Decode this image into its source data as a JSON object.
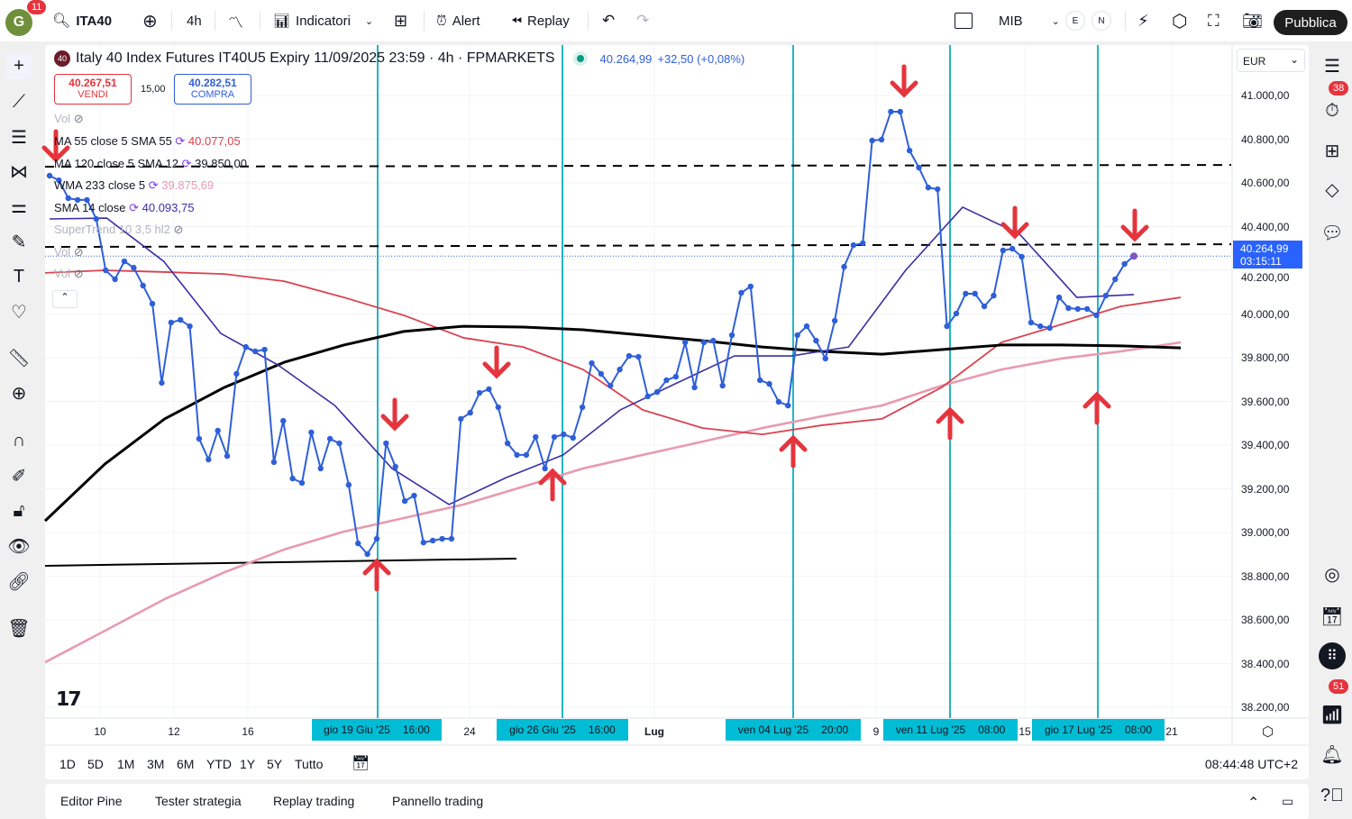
{
  "topbar": {
    "avatar_letter": "G",
    "notif_count": "11",
    "symbol": "ITA40",
    "interval": "4h",
    "indicators": "Indicatori",
    "alert": "Alert",
    "replay": "Replay",
    "exchange": "MIB",
    "session_e": "E",
    "session_n": "N",
    "publish": "Pubblica"
  },
  "legend": {
    "logo_text": "40",
    "title": "Italy 40 Index Futures IT40U5 Expiry 11/09/2025 23:59 · 4h · FPMARKETS",
    "last": "40.264,99",
    "change": "+32,50 (+0,08%)",
    "sell_price": "40.267,51",
    "sell_label": "VENDI",
    "spread": "15,00",
    "buy_price": "40.282,51",
    "buy_label": "COMPRA",
    "indicators": [
      {
        "name": "Vol",
        "value": "",
        "color": "#b2b5be"
      },
      {
        "name": "MA 55 close 5 SMA 55",
        "value": "40.077,05",
        "color": "#d9434f"
      },
      {
        "name": "MA 120 close 5 SMA 12",
        "value": "39.850,00",
        "color": "#131722"
      },
      {
        "name": "WMA 233 close 5",
        "value": "39.875,69",
        "color": "#e89aaf"
      },
      {
        "name": "SMA 14 close",
        "value": "40.093,75",
        "color": "#3a2fa3"
      },
      {
        "name": "SuperTrend 10 3,5 hl2",
        "value": "",
        "color": "#b2b5be"
      },
      {
        "name": "Vol",
        "value": "",
        "color": "#b2b5be"
      },
      {
        "name": "Vol",
        "value": "",
        "color": "#b2b5be"
      }
    ]
  },
  "price_axis": {
    "currency": "EUR",
    "labels": [
      "41.000,00",
      "40.800,00",
      "40.600,00",
      "40.400,00",
      "40.200,00",
      "40.000,00",
      "39.800,00",
      "39.600,00",
      "39.400,00",
      "39.200,00",
      "39.000,00",
      "38.800,00",
      "38.600,00",
      "38.400,00",
      "38.200,00"
    ],
    "last_price": "40.264,99",
    "countdown": "03:15:11"
  },
  "time_axis": {
    "labels": [
      "10",
      "12",
      "16",
      "24",
      "Lug",
      "9",
      "15",
      "21"
    ],
    "highlights": [
      {
        "date": "gio 19 Giu '25",
        "time": "16:00"
      },
      {
        "date": "gio 26 Giu '25",
        "time": "16:00"
      },
      {
        "date": "ven 04 Lug '25",
        "time": "20:00"
      },
      {
        "date": "ven 11 Lug '25",
        "time": "08:00"
      },
      {
        "date": "gio 17 Lug '25",
        "time": "08:00"
      }
    ]
  },
  "range_bar": {
    "ranges": [
      "1D",
      "5D",
      "1M",
      "3M",
      "6M",
      "YTD",
      "1Y",
      "5Y",
      "Tutto"
    ],
    "clock": "08:44:48 UTC+2"
  },
  "bottom_panel": {
    "tabs": [
      "Editor Pine",
      "Tester strategia",
      "Replay trading",
      "Pannello trading"
    ]
  },
  "right_bar": {
    "alerts_count": "38",
    "notifications_count": "51"
  },
  "colors": {
    "price": "#2f5fd8",
    "ma55": "#d9434f",
    "ma120": "#000000",
    "wma233": "#e89aaf",
    "sma14": "#3a2fa3",
    "vline": "#22b5c4",
    "arrow": "#e5343d",
    "last_price_bg": "#2962ff"
  },
  "chart_data": {
    "type": "line",
    "ylim": [
      38200,
      41000
    ],
    "series": [
      {
        "key": "price",
        "values": [
          40633,
          40612,
          40530,
          40522,
          40522,
          40435,
          40200,
          40159,
          40241,
          40212,
          40130,
          40047,
          39685,
          39961,
          39973,
          39944,
          39429,
          39334,
          39466,
          39350,
          39726,
          39849,
          39829,
          39837,
          39322,
          39511,
          39247,
          39227,
          39458,
          39293,
          39429,
          39408,
          39218,
          38950,
          38901,
          38971,
          39408,
          39301,
          39144,
          39169,
          38954,
          38963,
          38971,
          38971,
          39520,
          39548,
          39639,
          39656,
          39573,
          39408,
          39355,
          39355,
          39437,
          39293,
          39437,
          39449,
          39433,
          39573,
          39775,
          39726,
          39672,
          39746,
          39808,
          39804,
          39623,
          39643,
          39697,
          39713,
          39870,
          39664,
          39870,
          39878,
          39672,
          39903,
          40097,
          40126,
          39697,
          39680,
          39598,
          39581,
          39903,
          39944,
          39878,
          39796,
          39969,
          40216,
          40315,
          40324,
          40794,
          40798,
          40926,
          40926,
          40748,
          40670,
          40579,
          40571,
          39944,
          40002,
          40093,
          40093,
          40035,
          40084,
          40291,
          40299,
          40262,
          39961,
          39944,
          39936,
          40076,
          40027,
          40023,
          40023,
          39994,
          40084,
          40159,
          40229,
          40264.99
        ]
      },
      {
        "key": "sma14",
        "values": [
          40435,
          40439,
          40241,
          39911,
          39767,
          39581,
          39293,
          39128,
          39251,
          39355,
          39561,
          39685,
          39808,
          39808,
          39849,
          40200,
          40489,
          40365,
          40076,
          40089
        ]
      },
      {
        "key": "ma55",
        "values": [
          40188,
          40200,
          40192,
          40183,
          40150,
          40076,
          39994,
          39891,
          39849,
          39746,
          39561,
          39478,
          39449,
          39491,
          39520,
          39664,
          39870,
          39952,
          40035,
          40076
        ]
      },
      {
        "key": "ma120",
        "values": [
          39053,
          39313,
          39520,
          39664,
          39779,
          39858,
          39920,
          39944,
          39940,
          39928,
          39903,
          39878,
          39849,
          39829,
          39816,
          39837,
          39858,
          39858,
          39854,
          39845
        ]
      },
      {
        "key": "wma233",
        "values": [
          38406,
          38550,
          38695,
          38818,
          38922,
          39004,
          39066,
          39128,
          39210,
          39293,
          39355,
          39416,
          39478,
          39532,
          39581,
          39672,
          39746,
          39796,
          39829,
          39870
        ]
      }
    ],
    "horizontal_lines": [
      {
        "price": 40674,
        "style": "dashed"
      },
      {
        "price": 40311,
        "style": "dashed"
      },
      {
        "price": 40265,
        "style": "dotted"
      },
      {
        "price": 38860,
        "style": "solid"
      }
    ]
  }
}
